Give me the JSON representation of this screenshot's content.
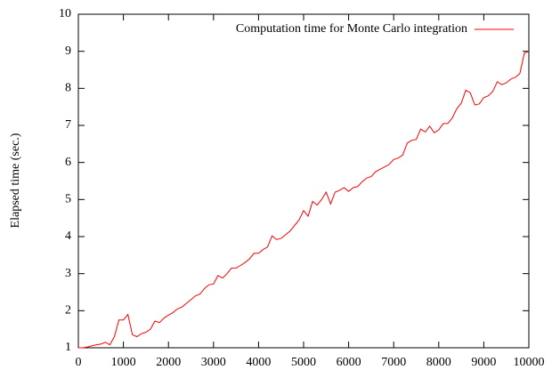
{
  "chart_data": {
    "type": "line",
    "y_label": "Elapsed time (sec.)",
    "x": [
      0,
      100,
      200,
      300,
      400,
      500,
      600,
      700,
      800,
      900,
      1000,
      1100,
      1200,
      1300,
      1400,
      1500,
      1600,
      1700,
      1800,
      1900,
      2000,
      2100,
      2200,
      2300,
      2400,
      2500,
      2600,
      2700,
      2800,
      2900,
      3000,
      3100,
      3200,
      3300,
      3400,
      3500,
      3600,
      3700,
      3800,
      3900,
      4000,
      4100,
      4200,
      4300,
      4400,
      4500,
      4600,
      4700,
      4800,
      4900,
      5000,
      5100,
      5200,
      5300,
      5400,
      5500,
      5600,
      5700,
      5800,
      5900,
      6000,
      6100,
      6200,
      6300,
      6400,
      6500,
      6600,
      6700,
      6800,
      6900,
      7000,
      7100,
      7200,
      7300,
      7400,
      7500,
      7600,
      7700,
      7800,
      7900,
      8000,
      8100,
      8200,
      8300,
      8400,
      8500,
      8600,
      8700,
      8800,
      8900,
      9000,
      9100,
      9200,
      9300,
      9400,
      9500,
      9600,
      9700,
      9800,
      9900,
      10000
    ],
    "series": [
      {
        "name": "Computation time for Monte Carlo integration",
        "color": "#ff0000",
        "values": [
          1.0,
          1.0,
          1.02,
          1.05,
          1.08,
          1.1,
          1.15,
          1.08,
          1.3,
          1.75,
          1.75,
          1.9,
          1.35,
          1.3,
          1.38,
          1.42,
          1.5,
          1.72,
          1.68,
          1.8,
          1.88,
          1.95,
          2.05,
          2.1,
          2.2,
          2.3,
          2.4,
          2.45,
          2.6,
          2.7,
          2.72,
          2.95,
          2.88,
          3.0,
          3.15,
          3.15,
          3.22,
          3.3,
          3.4,
          3.55,
          3.55,
          3.65,
          3.72,
          4.02,
          3.92,
          3.95,
          4.05,
          4.15,
          4.3,
          4.45,
          4.7,
          4.55,
          4.95,
          4.85,
          5.0,
          5.2,
          4.88,
          5.2,
          5.25,
          5.32,
          5.22,
          5.32,
          5.35,
          5.48,
          5.58,
          5.62,
          5.75,
          5.82,
          5.88,
          5.95,
          6.08,
          6.12,
          6.2,
          6.52,
          6.6,
          6.62,
          6.9,
          6.82,
          6.98,
          6.8,
          6.88,
          7.05,
          7.05,
          7.2,
          7.45,
          7.6,
          7.95,
          7.88,
          7.55,
          7.58,
          7.75,
          7.8,
          7.92,
          8.18,
          8.1,
          8.15,
          8.25,
          8.3,
          8.4,
          8.95,
          9.0
        ]
      }
    ],
    "xlim": [
      0,
      10000
    ],
    "ylim": [
      1,
      10
    ],
    "xticks": [
      0,
      1000,
      2000,
      3000,
      4000,
      5000,
      6000,
      7000,
      8000,
      9000,
      10000
    ],
    "yticks": [
      1,
      2,
      3,
      4,
      5,
      6,
      7,
      8,
      9,
      10
    ],
    "legend": "top-right"
  }
}
